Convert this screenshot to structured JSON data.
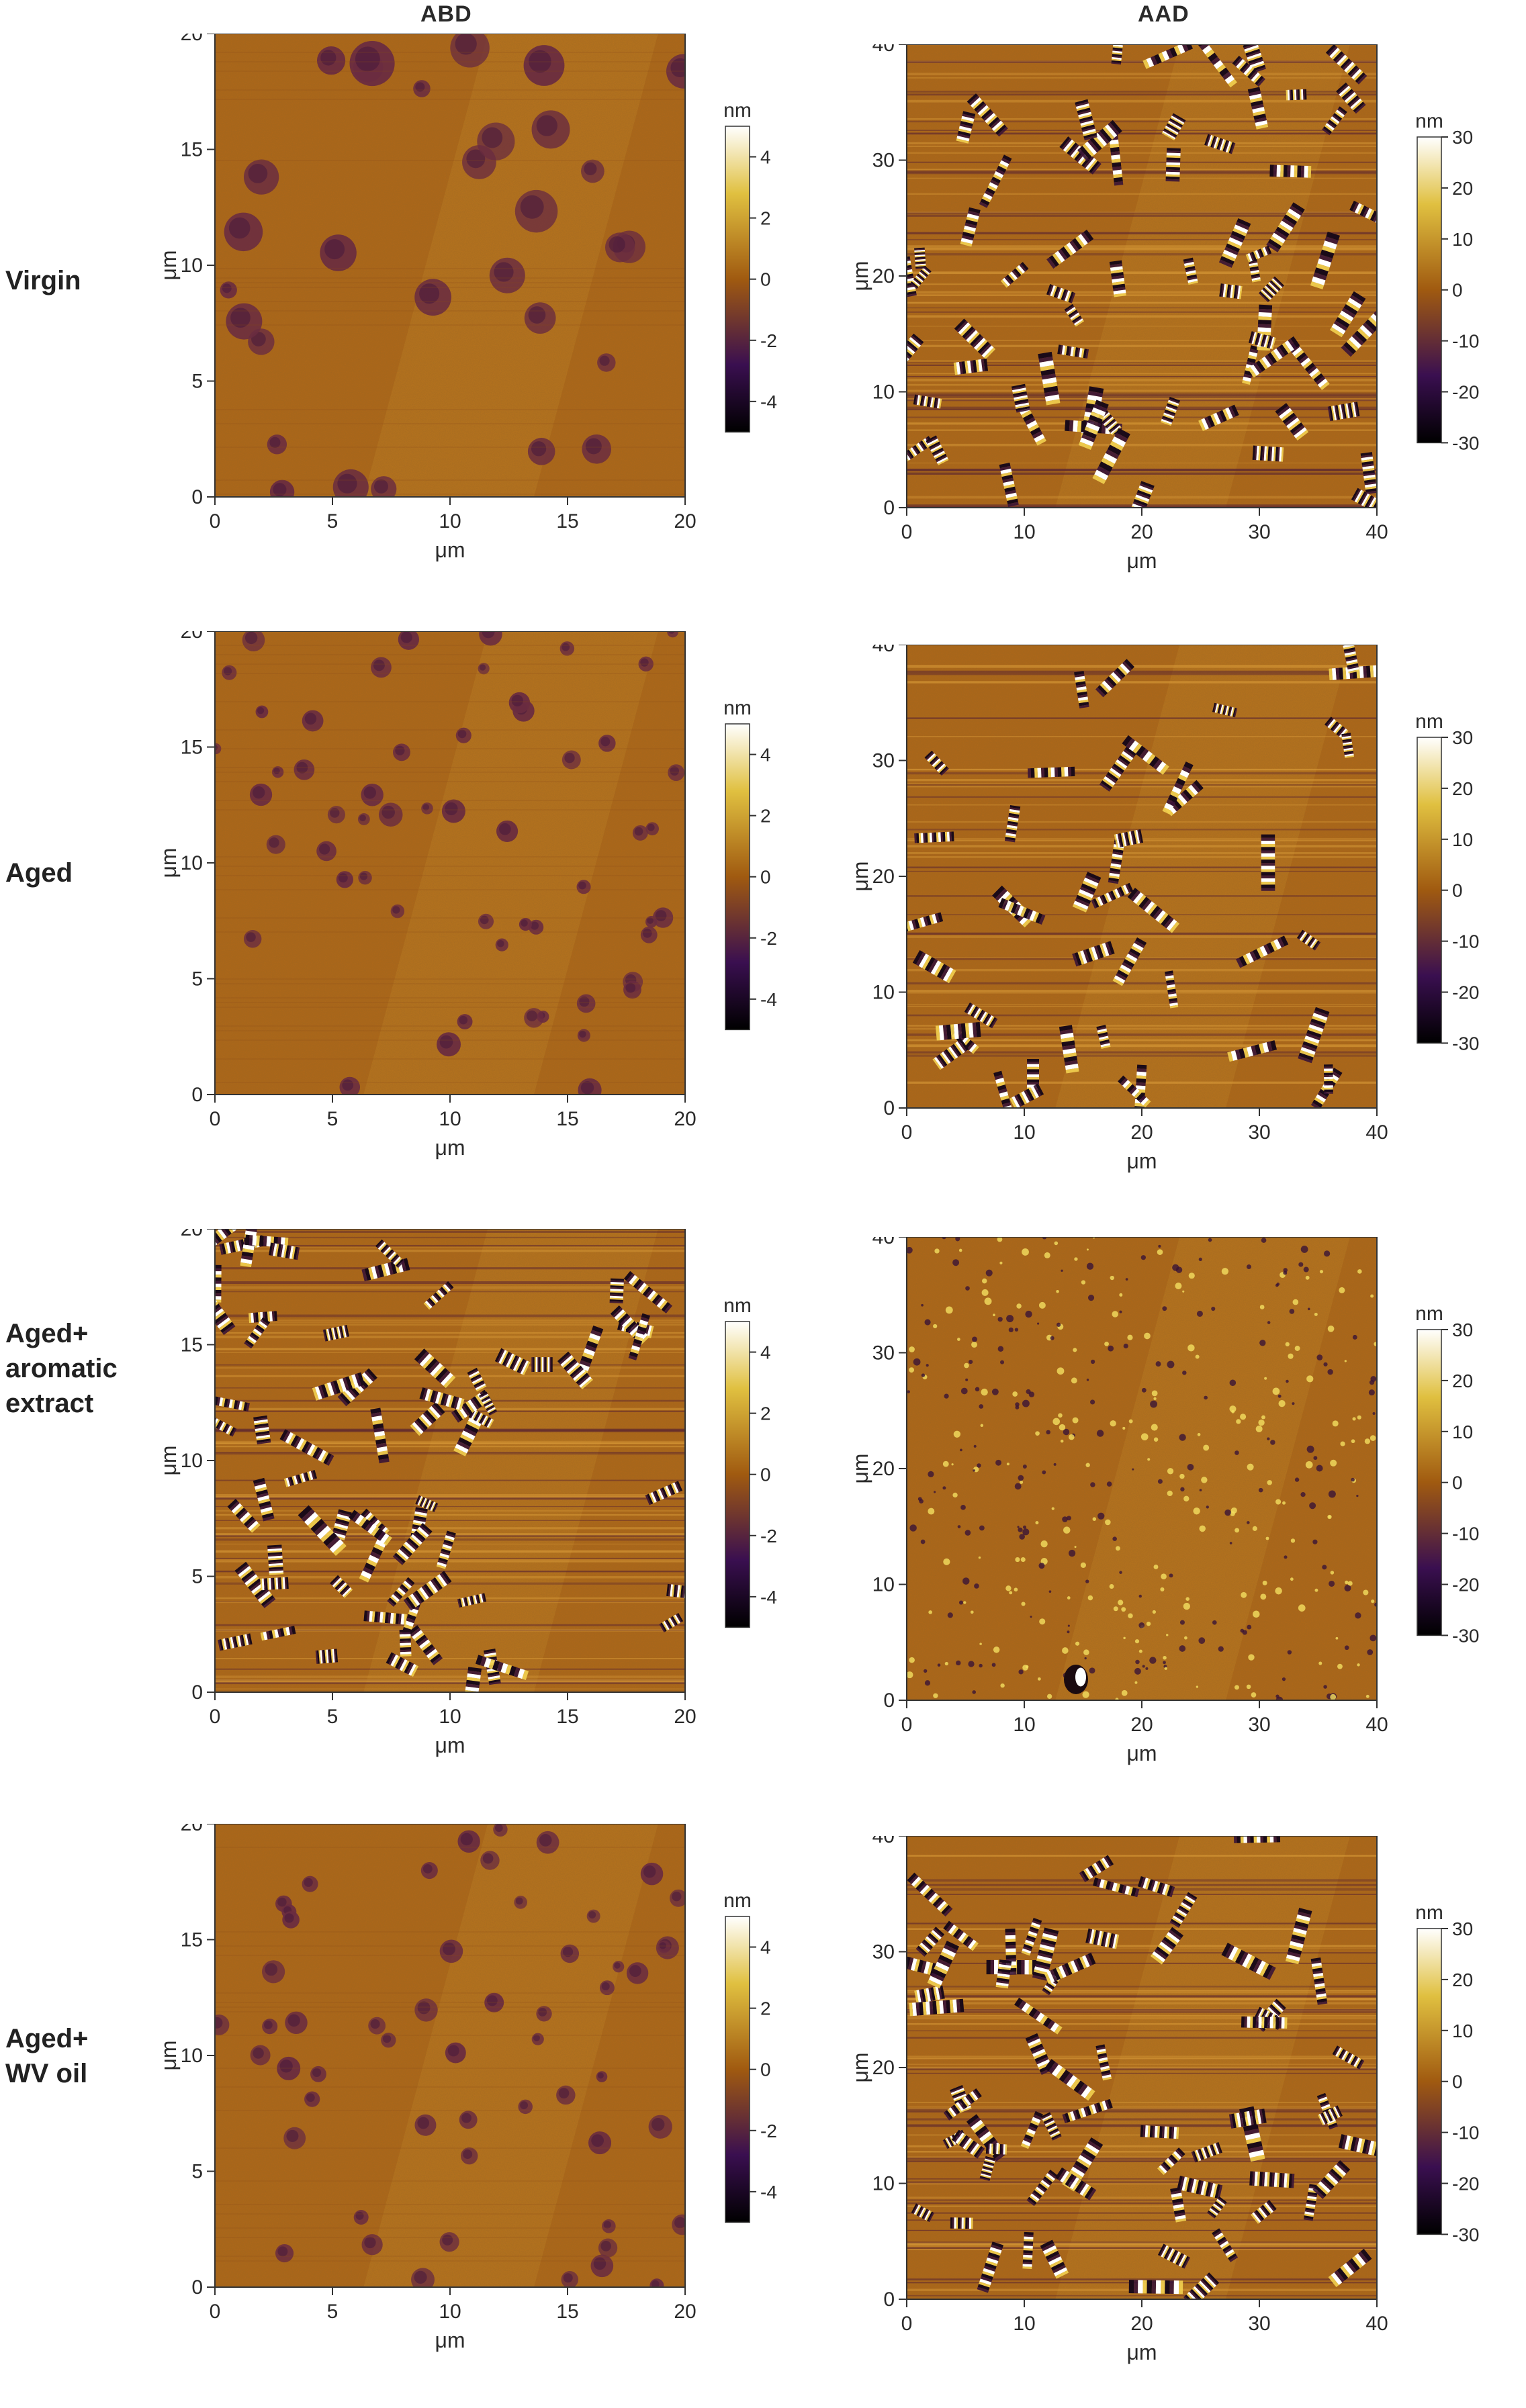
{
  "column_headers": [
    "ABD",
    "AAD"
  ],
  "rows": [
    {
      "id": "virgin",
      "label_lines": [
        "Virgin"
      ]
    },
    {
      "id": "aged",
      "label_lines": [
        "Aged"
      ]
    },
    {
      "id": "aged-aromatic",
      "label_lines": [
        "Aged+",
        "aromatic",
        "extract"
      ]
    },
    {
      "id": "aged-wv",
      "label_lines": [
        "Aged+",
        "WV oil"
      ]
    }
  ],
  "axis_unit": "μm",
  "colorbar_unit": "nm",
  "abd": {
    "ticks": [
      "0",
      "5",
      "10",
      "15",
      "20"
    ],
    "colorbar_ticks": [
      "4",
      "2",
      "0",
      "-2",
      "-4"
    ]
  },
  "aad": {
    "ticks": [
      "0",
      "10",
      "20",
      "30",
      "40"
    ],
    "colorbar_ticks": [
      "30",
      "20",
      "10",
      "0",
      "-10",
      "-20",
      "-30"
    ]
  },
  "colors": {
    "surface": "#b06818",
    "dark": "#2a0f3a",
    "bright": "#ffffff",
    "gold": "#f0d040"
  }
}
